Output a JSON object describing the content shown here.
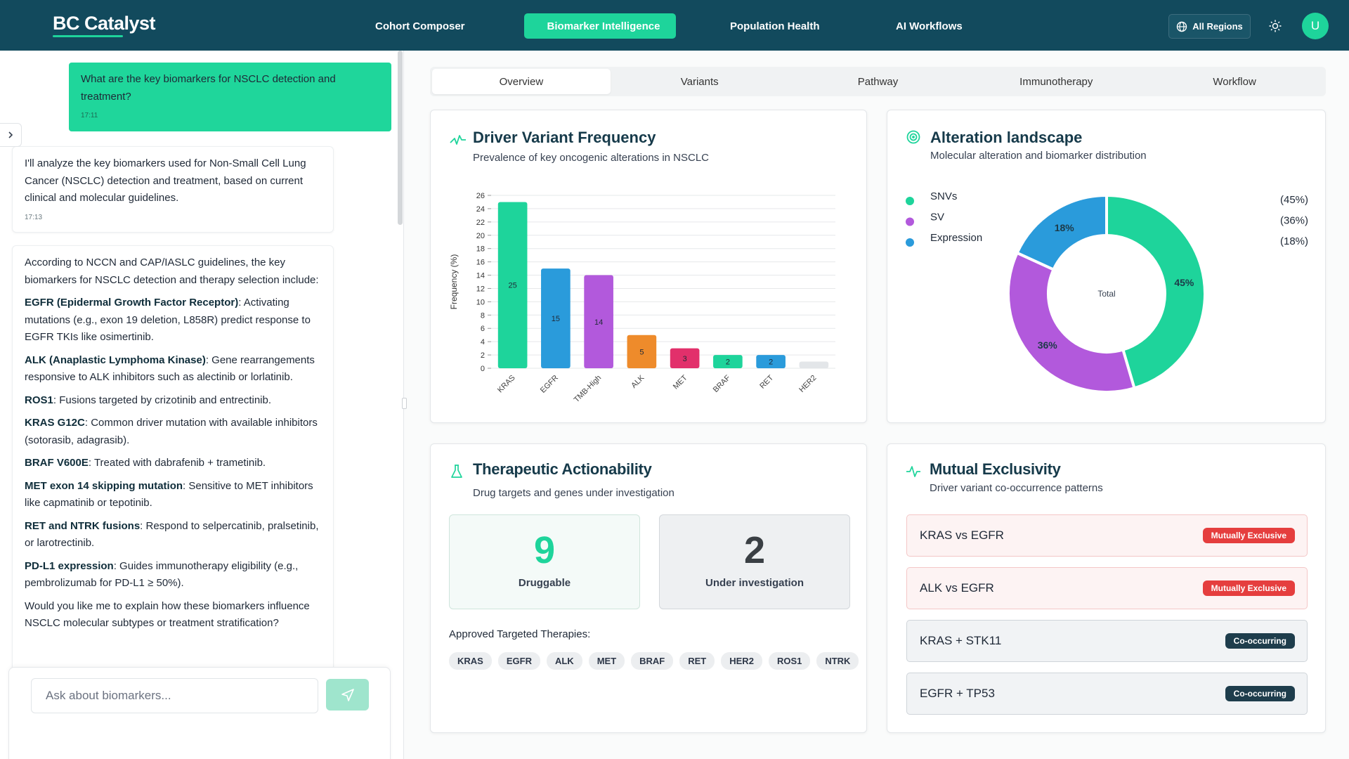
{
  "header": {
    "logo": "BC Catalyst",
    "nav": [
      "Cohort Composer",
      "Biomarker Intelligence",
      "Population Health",
      "AI Workflows"
    ],
    "active_nav": 1,
    "region": "All Regions",
    "avatar": "U"
  },
  "chat": {
    "messages": [
      {
        "role": "user",
        "paragraphs": [
          {
            "text": "What are the key biomarkers for NSCLC detection and treatment?"
          }
        ],
        "time": "17:11"
      },
      {
        "role": "assistant",
        "paragraphs": [
          {
            "text": "I'll analyze the key biomarkers used for Non-Small Cell Lung Cancer (NSCLC) detection and treatment, based on current clinical and molecular guidelines."
          }
        ],
        "time": "17:13"
      },
      {
        "role": "assistant",
        "paragraphs": [
          {
            "text": "According to NCCN and CAP/IASLC guidelines, the key biomarkers for NSCLC detection and therapy selection include:"
          },
          {
            "bold": "EGFR (Epidermal Growth Factor Receptor)",
            "text": ": Activating mutations (e.g., exon 19 deletion, L858R) predict response to EGFR TKIs like osimertinib."
          },
          {
            "bold": "ALK (Anaplastic Lymphoma Kinase)",
            "text": ": Gene rearrangements responsive to ALK inhibitors such as alectinib or lorlatinib."
          },
          {
            "bold": "ROS1",
            "text": ": Fusions targeted by crizotinib and entrectinib."
          },
          {
            "bold": "KRAS G12C",
            "text": ": Common driver mutation with available inhibitors (sotorasib, adagrasib)."
          },
          {
            "bold": "BRAF V600E",
            "text": ": Treated with dabrafenib + trametinib."
          },
          {
            "bold": "MET exon 14 skipping mutation",
            "text": ": Sensitive to MET inhibitors like capmatinib or tepotinib."
          },
          {
            "bold": "RET and NTRK fusions",
            "text": ": Respond to selpercatinib, pralsetinib, or larotrectinib."
          },
          {
            "bold": "PD-L1 expression",
            "text": ": Guides immunotherapy eligibility (e.g., pembrolizumab for PD-L1 ≥ 50%)."
          },
          {
            "text": "Would you like me to explain how these biomarkers influence NSCLC molecular subtypes or treatment stratification?"
          }
        ]
      }
    ],
    "input_placeholder": "Ask about biomarkers..."
  },
  "tabs": [
    "Overview",
    "Variants",
    "Pathway",
    "Immunotherapy",
    "Workflow"
  ],
  "active_tab": 0,
  "chart_data": [
    {
      "type": "bar",
      "title": "Driver Variant Frequency",
      "subtitle": "Prevalence of key oncogenic alterations in NSCLC",
      "y_label": "Frequency (%)",
      "categories": [
        "KRAS",
        "EGFR",
        "TMB-High",
        "ALK",
        "MET",
        "BRAF",
        "RET",
        "HER2"
      ],
      "values": [
        25,
        15,
        14,
        5,
        3,
        2,
        2,
        1
      ],
      "colors": [
        "#1ed49b",
        "#2a9bdb",
        "#b259dc",
        "#ee8b2b",
        "#e2306b",
        "#1ed49b",
        "#2a9bdb",
        "#e3e6e9"
      ],
      "ylim": [
        0,
        26
      ],
      "yticks": [
        0,
        2,
        4,
        6,
        8,
        10,
        12,
        14,
        16,
        18,
        20,
        22,
        24,
        26
      ],
      "grid": true
    },
    {
      "type": "pie",
      "title": "Alteration landscape",
      "subtitle": "Molecular alteration and biomarker distribution",
      "center_label": "Total",
      "categories": [
        "SNVs",
        "SV",
        "Expression"
      ],
      "values": [
        45,
        36,
        18
      ],
      "value_labels": [
        "45%",
        "36%",
        "18%"
      ],
      "legend_value_labels": [
        "(45%)",
        "(36%)",
        "(18%)"
      ],
      "colors": [
        "#1ed49b",
        "#b259dc",
        "#2a9bdb"
      ]
    }
  ],
  "actionability": {
    "title": "Therapeutic Actionability",
    "subtitle": "Drug targets and genes under investigation",
    "stats": [
      {
        "value": "9",
        "label": "Druggable"
      },
      {
        "value": "2",
        "label": "Under investigation"
      }
    ],
    "therapies_label": "Approved Targeted Therapies:",
    "therapies": [
      "KRAS",
      "EGFR",
      "ALK",
      "MET",
      "BRAF",
      "RET",
      "HER2",
      "ROS1",
      "NTRK"
    ]
  },
  "exclusivity": {
    "title": "Mutual Exclusivity",
    "subtitle": "Driver variant co-occurrence patterns",
    "pairs": [
      {
        "label": "KRAS vs EGFR",
        "badge": "Mutually Exclusive",
        "kind": "exclusive"
      },
      {
        "label": "ALK vs EGFR",
        "badge": "Mutually Exclusive",
        "kind": "exclusive"
      },
      {
        "label": "KRAS + STK11",
        "badge": "Co-occurring",
        "kind": "co"
      },
      {
        "label": "EGFR + TP53",
        "badge": "Co-occurring",
        "kind": "co"
      }
    ]
  }
}
